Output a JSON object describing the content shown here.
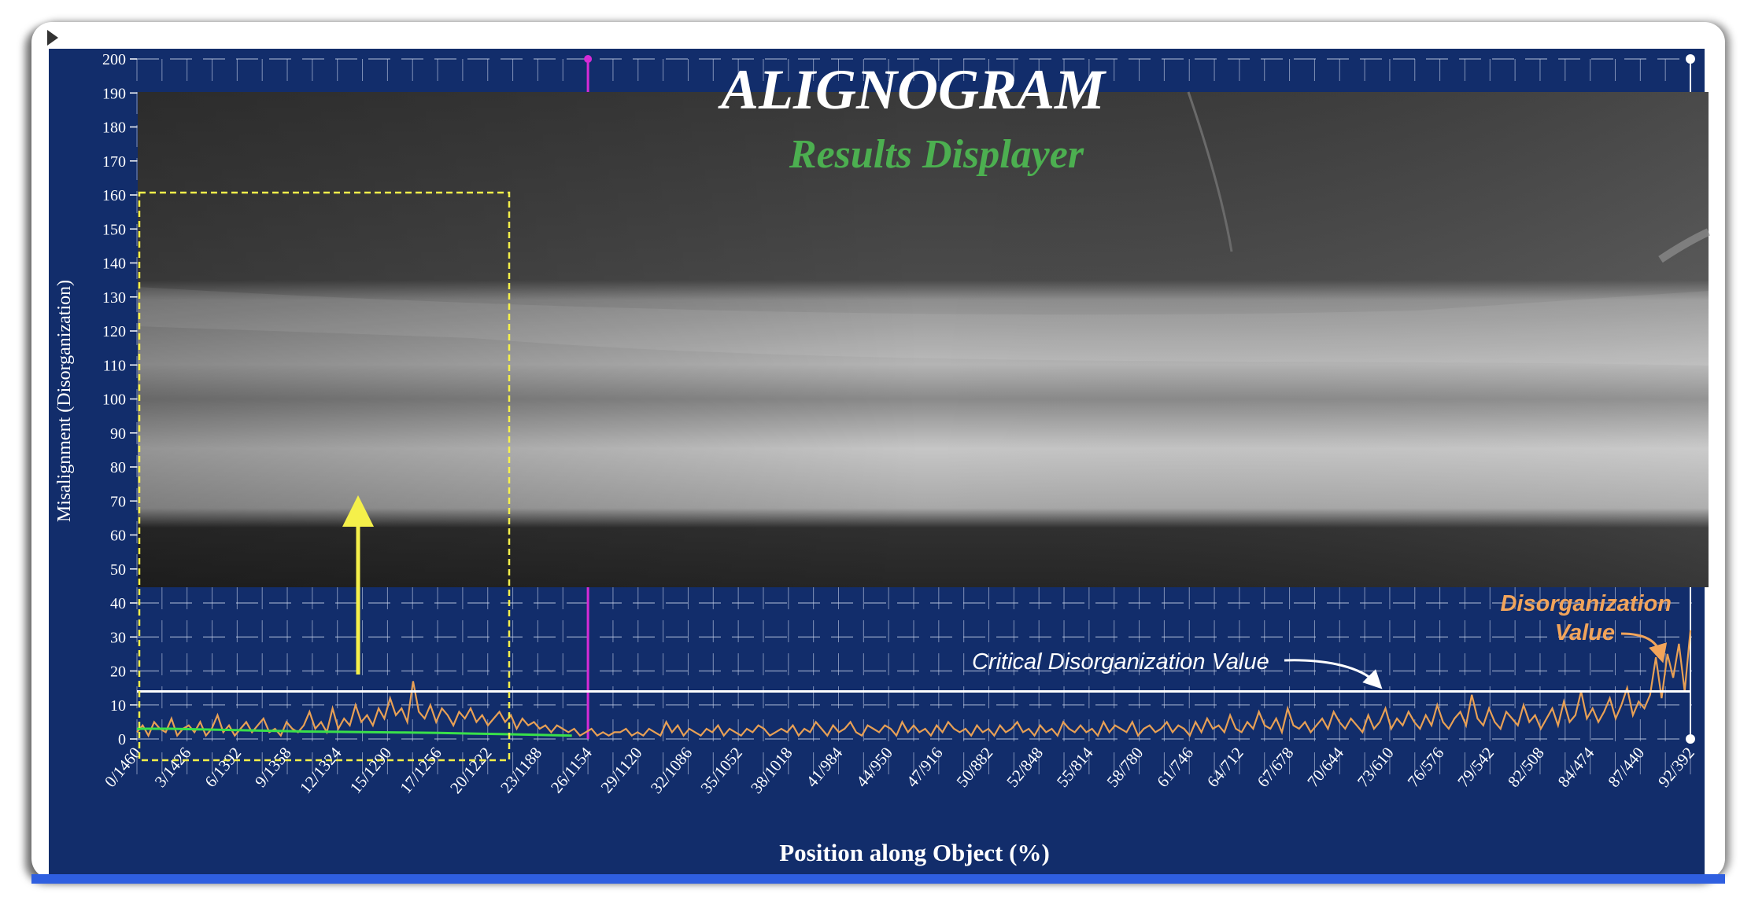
{
  "titles": {
    "main": "ALIGNOGRAM",
    "subtitle": "Results Displayer",
    "main_color": "#ffffff",
    "subtitle_color": "#4caf50"
  },
  "annotations": {
    "critical_line_label": "Critical Disorganization Value",
    "disorg_label_line1": "Disorganization",
    "disorg_label_line2": "Value",
    "label_color": "#f2a45a"
  },
  "colors": {
    "panel": "#122d6b",
    "grid": "#c9d3ea",
    "series": "#e8a055",
    "critical_line": "#ffffff",
    "trend": "#39e04a",
    "cursor": "#d62bd6",
    "selection_box": "#f5f04a",
    "arrow": "#f5f04a"
  },
  "chart_data": {
    "type": "line",
    "title": "",
    "xlabel": "Position along Object (%)",
    "ylabel": "Misalignment (Disorganization)",
    "ylim": [
      0,
      200
    ],
    "yticks": [
      0,
      10,
      20,
      30,
      40,
      50,
      60,
      70,
      80,
      90,
      100,
      110,
      120,
      130,
      140,
      150,
      160,
      170,
      180,
      190,
      200
    ],
    "xtick_labels": [
      "0/1460",
      "3/1426",
      "6/1392",
      "9/1358",
      "12/1324",
      "15/1290",
      "17/1256",
      "20/1222",
      "23/1188",
      "26/1154",
      "29/1120",
      "32/1086",
      "35/1052",
      "38/1018",
      "41/984",
      "44/950",
      "47/916",
      "50/882",
      "52/848",
      "55/814",
      "58/780",
      "61/746",
      "64/712",
      "67/678",
      "70/644",
      "73/610",
      "76/576",
      "79/542",
      "82/508",
      "84/474",
      "87/440",
      "92/392"
    ],
    "critical_value": 14,
    "cursor_position": "26/1154",
    "series": [
      {
        "name": "Disorganization Value",
        "values": [
          2,
          4,
          1,
          5,
          3,
          2,
          6,
          1,
          3,
          4,
          2,
          5,
          1,
          3,
          7,
          2,
          4,
          1,
          3,
          5,
          2,
          4,
          6,
          2,
          3,
          1,
          5,
          3,
          2,
          4,
          8,
          3,
          5,
          2,
          9,
          3,
          6,
          4,
          10,
          5,
          7,
          4,
          9,
          6,
          12,
          7,
          9,
          5,
          17,
          8,
          6,
          10,
          5,
          9,
          7,
          4,
          8,
          6,
          9,
          5,
          7,
          4,
          6,
          8,
          5,
          7,
          3,
          6,
          4,
          5,
          3,
          4,
          2,
          4,
          3,
          2,
          3,
          1,
          2,
          3,
          1,
          2,
          1,
          2,
          2,
          3,
          1,
          2,
          1,
          3,
          2,
          1,
          5,
          2,
          4,
          1,
          3,
          2,
          1,
          3,
          2,
          4,
          1,
          3,
          2,
          1,
          3,
          2,
          4,
          3,
          1,
          2,
          3,
          2,
          4,
          1,
          3,
          2,
          5,
          3,
          1,
          4,
          2,
          3,
          5,
          2,
          1,
          4,
          3,
          2,
          4,
          3,
          1,
          5,
          2,
          4,
          2,
          3,
          1,
          4,
          2,
          5,
          3,
          2,
          3,
          1,
          4,
          2,
          3,
          1,
          4,
          2,
          3,
          5,
          2,
          3,
          1,
          4,
          2,
          3,
          1,
          5,
          3,
          2,
          4,
          2,
          3,
          1,
          5,
          2,
          4,
          3,
          2,
          5,
          1,
          3,
          4,
          2,
          3,
          5,
          2,
          4,
          3,
          1,
          5,
          2,
          6,
          3,
          4,
          2,
          7,
          3,
          2,
          5,
          3,
          8,
          4,
          3,
          6,
          2,
          9,
          4,
          3,
          5,
          2,
          4,
          6,
          3,
          8,
          5,
          3,
          6,
          4,
          2,
          7,
          3,
          5,
          9,
          3,
          6,
          4,
          8,
          5,
          3,
          7,
          4,
          10,
          5,
          3,
          6,
          8,
          4,
          13,
          6,
          4,
          9,
          5,
          3,
          8,
          6,
          4,
          10,
          5,
          7,
          3,
          6,
          9,
          4,
          11,
          5,
          7,
          14,
          6,
          9,
          5,
          8,
          12,
          6,
          10,
          15,
          7,
          11,
          9,
          13,
          24,
          12,
          25,
          18,
          28,
          14,
          32
        ]
      }
    ],
    "trend_values": [
      3,
      3,
      2.8,
      2.6,
      2.4,
      2.2,
      2.1,
      2,
      1.9,
      1.8,
      1.6,
      1.4,
      1.2,
      1
    ]
  },
  "xray": {
    "present": true
  }
}
